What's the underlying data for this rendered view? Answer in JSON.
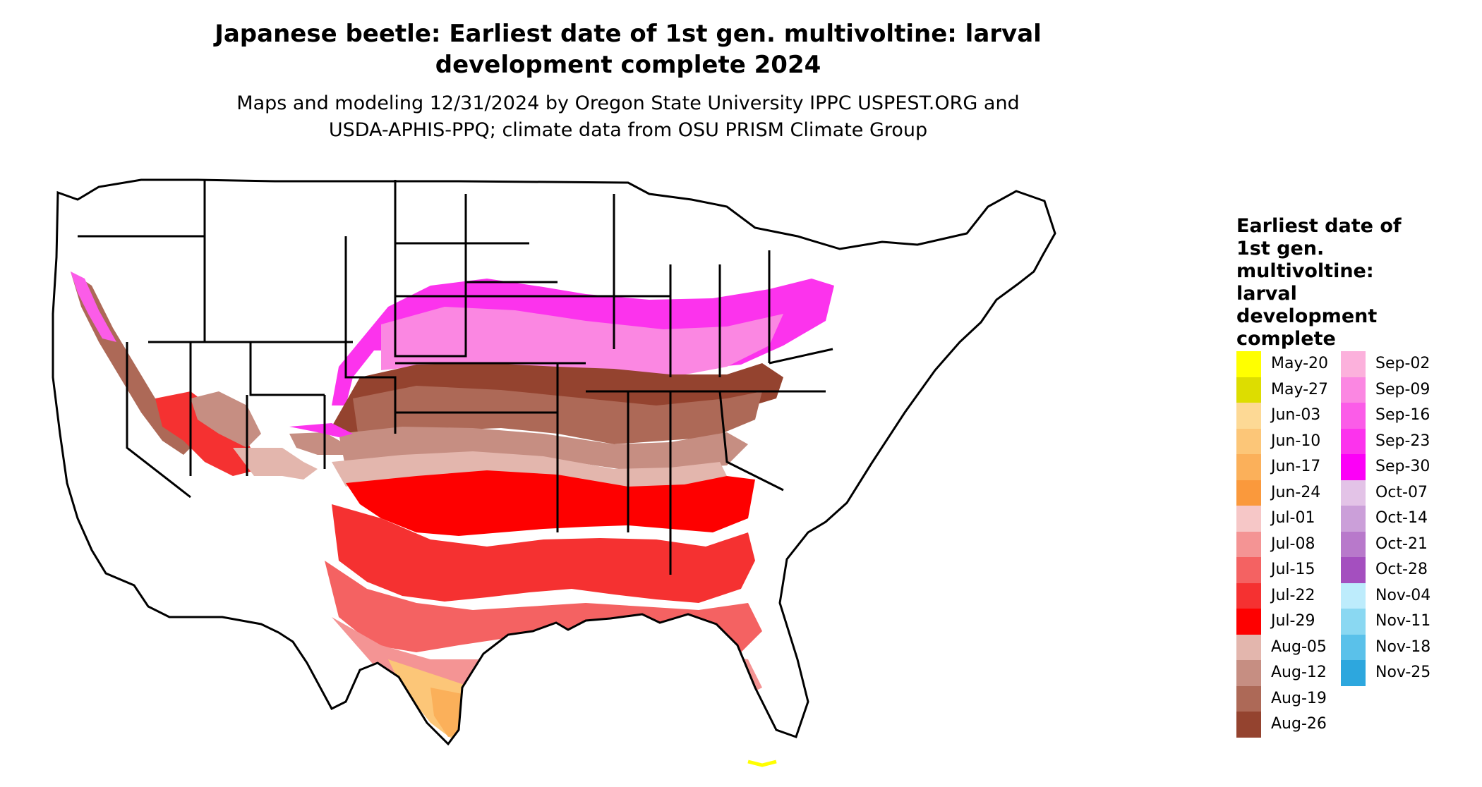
{
  "title_line1": "Japanese beetle: Earliest date of 1st gen. multivoltine: larval",
  "title_line2": "development complete 2024",
  "subtitle_line1": "Maps and modeling 12/31/2024 by Oregon State University IPPC USPEST.ORG and",
  "subtitle_line2": "USDA-APHIS-PPQ; climate data from OSU PRISM Climate Group",
  "legend": {
    "title": "Earliest date of 1st gen. multivoltine: larval development complete",
    "col1": [
      {
        "label": "May-20",
        "color": "#ffff00"
      },
      {
        "label": "May-27",
        "color": "#dddd00"
      },
      {
        "label": "Jun-03",
        "color": "#fdd995"
      },
      {
        "label": "Jun-10",
        "color": "#fcc678"
      },
      {
        "label": "Jun-17",
        "color": "#fbb05a"
      },
      {
        "label": "Jun-24",
        "color": "#fa993c"
      },
      {
        "label": "Jul-01",
        "color": "#f6c7c7"
      },
      {
        "label": "Jul-08",
        "color": "#f49494"
      },
      {
        "label": "Jul-15",
        "color": "#f46262"
      },
      {
        "label": "Jul-22",
        "color": "#f53131"
      },
      {
        "label": "Jul-29",
        "color": "#fe0000"
      },
      {
        "label": "Aug-05",
        "color": "#e3b6ad"
      },
      {
        "label": "Aug-12",
        "color": "#c68e82"
      },
      {
        "label": "Aug-19",
        "color": "#ad6957"
      },
      {
        "label": "Aug-26",
        "color": "#94432f"
      }
    ],
    "col2": [
      {
        "label": "Sep-02",
        "color": "#fcb1dc"
      },
      {
        "label": "Sep-09",
        "color": "#fb87e2"
      },
      {
        "label": "Sep-16",
        "color": "#fb5ce8"
      },
      {
        "label": "Sep-23",
        "color": "#fc33ed"
      },
      {
        "label": "Sep-30",
        "color": "#fc00f7"
      },
      {
        "label": "Oct-07",
        "color": "#e3c3e7"
      },
      {
        "label": "Oct-14",
        "color": "#cb9fd9"
      },
      {
        "label": "Oct-21",
        "color": "#b879cb"
      },
      {
        "label": "Oct-28",
        "color": "#a44fbf"
      },
      {
        "label": "Nov-04",
        "color": "#bdecfc"
      },
      {
        "label": "Nov-11",
        "color": "#8ad8f2"
      },
      {
        "label": "Nov-18",
        "color": "#5ac1ea"
      },
      {
        "label": "Nov-25",
        "color": "#2da7de"
      }
    ]
  }
}
